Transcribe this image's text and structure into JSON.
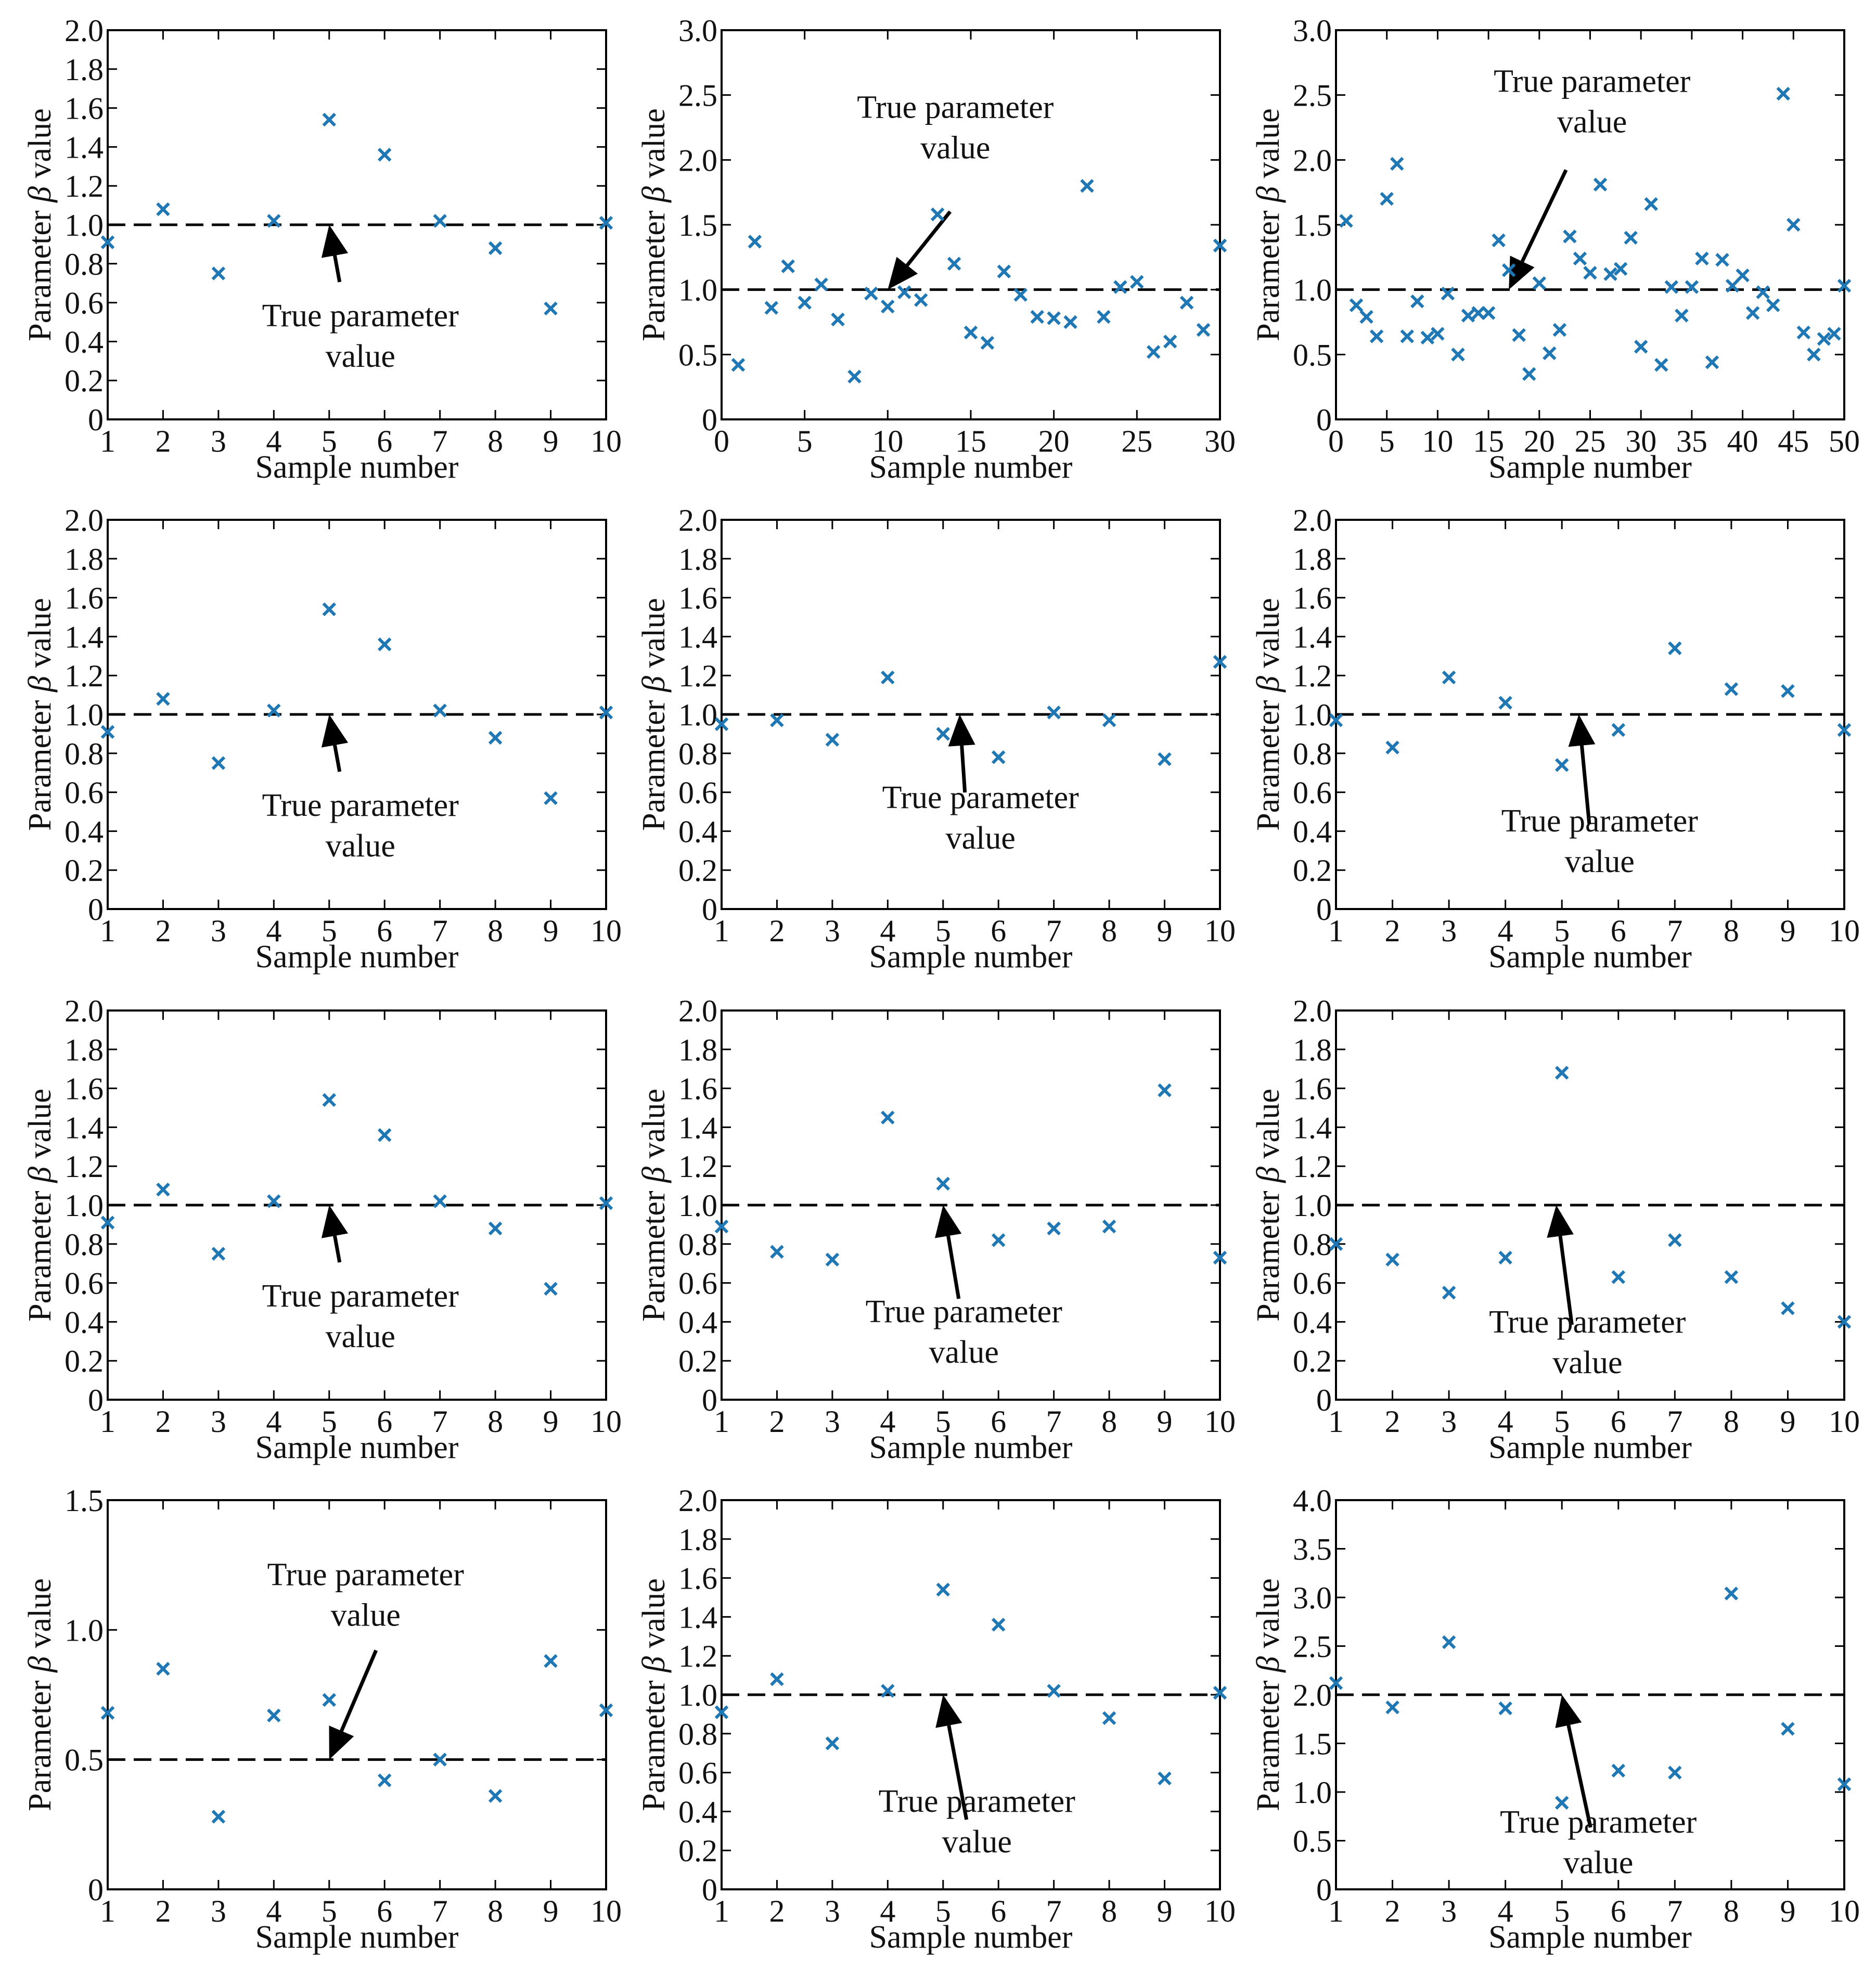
{
  "figure": {
    "ylabel_prefix": "Parameter ",
    "ylabel_symbol": "β",
    "ylabel_suffix": " value",
    "xlabel": "Sample number",
    "annotation_line1": "True parameter",
    "annotation_line2": "value"
  },
  "chart_data": [
    {
      "type": "scatter",
      "title": "",
      "xlabel": "Sample number",
      "ylabel": "Parameter β value",
      "xlim": [
        1,
        10
      ],
      "ylim": [
        0,
        2
      ],
      "xticks": [
        1,
        2,
        3,
        4,
        5,
        6,
        7,
        8,
        9,
        10
      ],
      "yticks": [
        0,
        0.2,
        0.4,
        0.6,
        0.8,
        1.0,
        1.2,
        1.4,
        1.6,
        1.8,
        2.0
      ],
      "ytick_labels": [
        "0",
        "0.2",
        "0.4",
        "0.6",
        "0.8",
        "1.0",
        "1.2",
        "1.4",
        "1.6",
        "1.8",
        "2.0"
      ],
      "true_value": 1.0,
      "annotation": "True parameter value",
      "x": [
        1,
        2,
        3,
        4,
        5,
        6,
        7,
        8,
        9,
        10
      ],
      "y": [
        0.91,
        1.08,
        0.75,
        1.02,
        1.54,
        1.36,
        1.02,
        0.88,
        0.57,
        1.01
      ]
    },
    {
      "type": "scatter",
      "title": "",
      "xlabel": "Sample number",
      "ylabel": "Parameter β value",
      "xlim": [
        0,
        30
      ],
      "ylim": [
        0,
        3
      ],
      "xticks": [
        0,
        5,
        10,
        15,
        20,
        25,
        30
      ],
      "yticks": [
        0,
        0.5,
        1.0,
        1.5,
        2.0,
        2.5,
        3.0
      ],
      "ytick_labels": [
        "0",
        "0.5",
        "1.0",
        "1.5",
        "2.0",
        "2.5",
        "3.0"
      ],
      "true_value": 1.0,
      "annotation": "True parameter value",
      "x": [
        1,
        2,
        3,
        4,
        5,
        6,
        7,
        8,
        9,
        10,
        11,
        12,
        13,
        14,
        15,
        16,
        17,
        18,
        19,
        20,
        21,
        22,
        23,
        24,
        25,
        26,
        27,
        28,
        29,
        30
      ],
      "y": [
        0.42,
        1.37,
        0.86,
        1.18,
        0.9,
        1.04,
        0.77,
        0.33,
        0.97,
        0.87,
        0.98,
        0.92,
        1.58,
        1.2,
        0.67,
        0.59,
        1.14,
        0.96,
        0.79,
        0.78,
        0.75,
        1.8,
        0.79,
        1.02,
        1.06,
        0.52,
        0.6,
        0.9,
        0.69,
        1.34
      ]
    },
    {
      "type": "scatter",
      "title": "",
      "xlabel": "Sample number",
      "ylabel": "Parameter β value",
      "xlim": [
        0,
        50
      ],
      "ylim": [
        0,
        3
      ],
      "xticks": [
        0,
        5,
        10,
        15,
        20,
        25,
        30,
        35,
        40,
        45,
        50
      ],
      "yticks": [
        0,
        0.5,
        1.0,
        1.5,
        2.0,
        2.5,
        3.0
      ],
      "ytick_labels": [
        "0",
        "0.5",
        "1.0",
        "1.5",
        "2.0",
        "2.5",
        "3.0"
      ],
      "true_value": 1.0,
      "annotation": "True parameter value",
      "x": [
        1,
        2,
        3,
        4,
        5,
        6,
        7,
        8,
        9,
        10,
        11,
        12,
        13,
        14,
        15,
        16,
        17,
        18,
        19,
        20,
        21,
        22,
        23,
        24,
        25,
        26,
        27,
        28,
        29,
        30,
        31,
        32,
        33,
        34,
        35,
        36,
        37,
        38,
        39,
        40,
        41,
        42,
        43,
        44,
        45,
        46,
        47,
        48,
        49,
        50
      ],
      "y": [
        1.53,
        0.88,
        0.79,
        0.64,
        1.7,
        1.97,
        0.64,
        0.91,
        0.63,
        0.66,
        0.97,
        0.5,
        0.8,
        0.82,
        0.82,
        1.38,
        1.15,
        0.65,
        0.35,
        1.05,
        0.51,
        0.69,
        1.41,
        1.24,
        1.13,
        1.81,
        1.12,
        1.16,
        1.4,
        0.56,
        1.66,
        0.42,
        1.02,
        0.8,
        1.02,
        1.24,
        0.44,
        1.23,
        1.03,
        1.11,
        0.82,
        0.98,
        0.88,
        2.51,
        1.5,
        0.67,
        0.5,
        0.62,
        0.66,
        1.03
      ]
    },
    {
      "type": "scatter",
      "title": "",
      "xlabel": "Sample number",
      "ylabel": "Parameter β value",
      "xlim": [
        1,
        10
      ],
      "ylim": [
        0,
        2
      ],
      "xticks": [
        1,
        2,
        3,
        4,
        5,
        6,
        7,
        8,
        9,
        10
      ],
      "yticks": [
        0,
        0.2,
        0.4,
        0.6,
        0.8,
        1.0,
        1.2,
        1.4,
        1.6,
        1.8,
        2.0
      ],
      "ytick_labels": [
        "0",
        "0.2",
        "0.4",
        "0.6",
        "0.8",
        "1.0",
        "1.2",
        "1.4",
        "1.6",
        "1.8",
        "2.0"
      ],
      "true_value": 1.0,
      "annotation": "True parameter value",
      "x": [
        1,
        2,
        3,
        4,
        5,
        6,
        7,
        8,
        9,
        10
      ],
      "y": [
        0.91,
        1.08,
        0.75,
        1.02,
        1.54,
        1.36,
        1.02,
        0.88,
        0.57,
        1.01
      ]
    },
    {
      "type": "scatter",
      "title": "",
      "xlabel": "Sample number",
      "ylabel": "Parameter β value",
      "xlim": [
        1,
        10
      ],
      "ylim": [
        0,
        2
      ],
      "xticks": [
        1,
        2,
        3,
        4,
        5,
        6,
        7,
        8,
        9,
        10
      ],
      "yticks": [
        0,
        0.2,
        0.4,
        0.6,
        0.8,
        1.0,
        1.2,
        1.4,
        1.6,
        1.8,
        2.0
      ],
      "ytick_labels": [
        "0",
        "0.2",
        "0.4",
        "0.6",
        "0.8",
        "1.0",
        "1.2",
        "1.4",
        "1.6",
        "1.8",
        "2.0"
      ],
      "true_value": 1.0,
      "annotation": "True parameter value",
      "x": [
        1,
        2,
        3,
        4,
        5,
        6,
        7,
        8,
        9,
        10
      ],
      "y": [
        0.95,
        0.97,
        0.87,
        1.19,
        0.9,
        0.78,
        1.01,
        0.97,
        0.77,
        1.27
      ]
    },
    {
      "type": "scatter",
      "title": "",
      "xlabel": "Sample number",
      "ylabel": "Parameter β value",
      "xlim": [
        1,
        10
      ],
      "ylim": [
        0,
        2
      ],
      "xticks": [
        1,
        2,
        3,
        4,
        5,
        6,
        7,
        8,
        9,
        10
      ],
      "yticks": [
        0,
        0.2,
        0.4,
        0.6,
        0.8,
        1.0,
        1.2,
        1.4,
        1.6,
        1.8,
        2.0
      ],
      "ytick_labels": [
        "0",
        "0.2",
        "0.4",
        "0.6",
        "0.8",
        "1.0",
        "1.2",
        "1.4",
        "1.6",
        "1.8",
        "2.0"
      ],
      "true_value": 1.0,
      "annotation": "True parameter value",
      "x": [
        1,
        2,
        3,
        4,
        5,
        6,
        7,
        8,
        9,
        10
      ],
      "y": [
        0.97,
        0.83,
        1.19,
        1.06,
        0.74,
        0.92,
        1.34,
        1.13,
        1.12,
        0.92
      ]
    },
    {
      "type": "scatter",
      "title": "",
      "xlabel": "Sample number",
      "ylabel": "Parameter β value",
      "xlim": [
        1,
        10
      ],
      "ylim": [
        0,
        2
      ],
      "xticks": [
        1,
        2,
        3,
        4,
        5,
        6,
        7,
        8,
        9,
        10
      ],
      "yticks": [
        0,
        0.2,
        0.4,
        0.6,
        0.8,
        1.0,
        1.2,
        1.4,
        1.6,
        1.8,
        2.0
      ],
      "ytick_labels": [
        "0",
        "0.2",
        "0.4",
        "0.6",
        "0.8",
        "1.0",
        "1.2",
        "1.4",
        "1.6",
        "1.8",
        "2.0"
      ],
      "true_value": 1.0,
      "annotation": "True parameter value",
      "x": [
        1,
        2,
        3,
        4,
        5,
        6,
        7,
        8,
        9,
        10
      ],
      "y": [
        0.91,
        1.08,
        0.75,
        1.02,
        1.54,
        1.36,
        1.02,
        0.88,
        0.57,
        1.01
      ]
    },
    {
      "type": "scatter",
      "title": "",
      "xlabel": "Sample number",
      "ylabel": "Parameter β value",
      "xlim": [
        1,
        10
      ],
      "ylim": [
        0,
        2
      ],
      "xticks": [
        1,
        2,
        3,
        4,
        5,
        6,
        7,
        8,
        9,
        10
      ],
      "yticks": [
        0,
        0.2,
        0.4,
        0.6,
        0.8,
        1.0,
        1.2,
        1.4,
        1.6,
        1.8,
        2.0
      ],
      "ytick_labels": [
        "0",
        "0.2",
        "0.4",
        "0.6",
        "0.8",
        "1.0",
        "1.2",
        "1.4",
        "1.6",
        "1.8",
        "2.0"
      ],
      "true_value": 1.0,
      "annotation": "True parameter value",
      "x": [
        1,
        2,
        3,
        4,
        5,
        6,
        7,
        8,
        9,
        10
      ],
      "y": [
        0.89,
        0.76,
        0.72,
        1.45,
        1.11,
        0.82,
        0.88,
        0.89,
        1.59,
        0.73
      ]
    },
    {
      "type": "scatter",
      "title": "",
      "xlabel": "Sample number",
      "ylabel": "Parameter β value",
      "xlim": [
        1,
        10
      ],
      "ylim": [
        0,
        2
      ],
      "xticks": [
        1,
        2,
        3,
        4,
        5,
        6,
        7,
        8,
        9,
        10
      ],
      "yticks": [
        0,
        0.2,
        0.4,
        0.6,
        0.8,
        1.0,
        1.2,
        1.4,
        1.6,
        1.8,
        2.0
      ],
      "ytick_labels": [
        "0",
        "0.2",
        "0.4",
        "0.6",
        "0.8",
        "1.0",
        "1.2",
        "1.4",
        "1.6",
        "1.8",
        "2.0"
      ],
      "true_value": 1.0,
      "annotation": "True parameter value",
      "x": [
        1,
        2,
        3,
        4,
        5,
        6,
        7,
        8,
        9,
        10
      ],
      "y": [
        0.8,
        0.72,
        0.55,
        0.73,
        1.68,
        0.63,
        0.82,
        0.63,
        0.47,
        0.4
      ]
    },
    {
      "type": "scatter",
      "title": "",
      "xlabel": "Sample number",
      "ylabel": "Parameter β value",
      "xlim": [
        1,
        10
      ],
      "ylim": [
        0,
        1.5
      ],
      "xticks": [
        1,
        2,
        3,
        4,
        5,
        6,
        7,
        8,
        9,
        10
      ],
      "yticks": [
        0,
        0.5,
        1.0,
        1.5
      ],
      "ytick_labels": [
        "0",
        "0.5",
        "1.0",
        "1.5"
      ],
      "true_value": 0.5,
      "annotation": "True parameter value",
      "x": [
        1,
        2,
        3,
        4,
        5,
        6,
        7,
        8,
        9,
        10
      ],
      "y": [
        0.68,
        0.85,
        0.28,
        0.67,
        0.73,
        0.42,
        0.5,
        0.36,
        0.88,
        0.69
      ]
    },
    {
      "type": "scatter",
      "title": "",
      "xlabel": "Sample number",
      "ylabel": "Parameter β value",
      "xlim": [
        1,
        10
      ],
      "ylim": [
        0,
        2
      ],
      "xticks": [
        1,
        2,
        3,
        4,
        5,
        6,
        7,
        8,
        9,
        10
      ],
      "yticks": [
        0,
        0.2,
        0.4,
        0.6,
        0.8,
        1.0,
        1.2,
        1.4,
        1.6,
        1.8,
        2.0
      ],
      "ytick_labels": [
        "0",
        "0.2",
        "0.4",
        "0.6",
        "0.8",
        "1.0",
        "1.2",
        "1.4",
        "1.6",
        "1.8",
        "2.0"
      ],
      "true_value": 1.0,
      "annotation": "True parameter value",
      "x": [
        1,
        2,
        3,
        4,
        5,
        6,
        7,
        8,
        9,
        10
      ],
      "y": [
        0.91,
        1.08,
        0.75,
        1.02,
        1.54,
        1.36,
        1.02,
        0.88,
        0.57,
        1.01
      ]
    },
    {
      "type": "scatter",
      "title": "",
      "xlabel": "Sample number",
      "ylabel": "Parameter β value",
      "xlim": [
        1,
        10
      ],
      "ylim": [
        0,
        4
      ],
      "xticks": [
        1,
        2,
        3,
        4,
        5,
        6,
        7,
        8,
        9,
        10
      ],
      "yticks": [
        0,
        0.5,
        1.0,
        1.5,
        2.0,
        2.5,
        3.0,
        3.5,
        4.0
      ],
      "ytick_labels": [
        "0",
        "0.5",
        "1.0",
        "1.5",
        "2.0",
        "2.5",
        "3.0",
        "3.5",
        "4.0"
      ],
      "true_value": 2.0,
      "annotation": "True parameter value",
      "x": [
        1,
        2,
        3,
        4,
        5,
        6,
        7,
        8,
        9,
        10
      ],
      "y": [
        2.12,
        1.87,
        2.54,
        1.86,
        0.89,
        1.22,
        1.2,
        3.04,
        1.65,
        1.08
      ]
    }
  ]
}
